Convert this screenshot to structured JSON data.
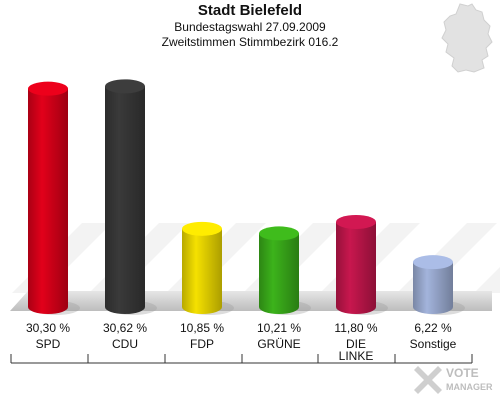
{
  "header": {
    "title": "Stadt Bielefeld",
    "subtitle": "Bundestagswahl 27.09.2009",
    "subtitle2": "Zweitstimmen Stimmbezirk 016.2"
  },
  "chart_data": {
    "type": "bar",
    "title": "Stadt Bielefeld",
    "subtitle": "Bundestagswahl 27.09.2009 — Zweitstimmen Stimmbezirk 016.2",
    "categories": [
      "SPD",
      "CDU",
      "FDP",
      "GRÜNE",
      "DIE LINKE",
      "Sonstige"
    ],
    "category_lines": [
      [
        "SPD"
      ],
      [
        "CDU"
      ],
      [
        "FDP"
      ],
      [
        "GRÜNE"
      ],
      [
        "DIE",
        "LINKE"
      ],
      [
        "Sonstige"
      ]
    ],
    "values": [
      30.3,
      30.62,
      10.85,
      10.21,
      11.8,
      6.22
    ],
    "value_labels": [
      "30,30 %",
      "30,62 %",
      "10,85 %",
      "10,21 %",
      "11,80 %",
      "6,22 %"
    ],
    "colors": [
      "#e2001a",
      "#3a3a3a",
      "#f5e100",
      "#3cb31b",
      "#c8174e",
      "#a3b4dc"
    ],
    "ylim": [
      0,
      34
    ],
    "grid": false,
    "legend": "none"
  },
  "decor": {
    "map_icon": "germany-map-icon",
    "watermark_text_1": "VOTE",
    "watermark_text_2": "MANAGER"
  }
}
